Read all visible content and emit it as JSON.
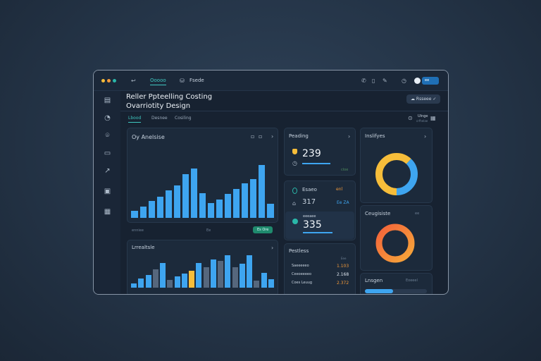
{
  "topbar": {
    "nav_active": "Ooooo",
    "nav_item": "Fsede",
    "badge": "ee"
  },
  "header": {
    "title_line1": "Reller Ppteelling Costing",
    "title_line2": "Ovarriotity Design",
    "action_button": "Rsseee",
    "status_label": "Ulnge",
    "status_sub": "crfhelae"
  },
  "tabs": [
    {
      "label": "Lbood",
      "active": true
    },
    {
      "label": "Desnee"
    },
    {
      "label": "Cosiling"
    }
  ],
  "overview": {
    "title": "Oy Anelsise",
    "footer_button": "Es Ore",
    "footer_labels": [
      "enniee",
      "Ee"
    ],
    "chart_data": {
      "type": "bar",
      "values": [
        30,
        47,
        72,
        88,
        115,
        137,
        184,
        209,
        104,
        63,
        78,
        102,
        122,
        145,
        163,
        223,
        60
      ],
      "color": "#3ea5f0"
    }
  },
  "levels": {
    "title": "Lrrealtsle",
    "chart_data": {
      "type": "bar",
      "values": [
        17,
        38,
        55,
        76,
        105,
        34,
        48,
        60,
        72,
        105,
        87,
        120,
        112,
        137,
        87,
        102,
        137,
        29,
        63,
        37
      ],
      "highlight": [
        "b",
        "b",
        "b",
        "g",
        "b",
        "g",
        "b",
        "b",
        "y",
        "b",
        "g",
        "b",
        "g",
        "b",
        "g",
        "b",
        "b",
        "g",
        "b",
        "b"
      ],
      "colors": {
        "b": "#3ea5f0",
        "g": "#56677d",
        "y": "#f6bd3a"
      }
    }
  },
  "pending": {
    "title": "Peading",
    "value": "239",
    "progress": 0.6,
    "footer": "cloe"
  },
  "stats": [
    {
      "label": "Esaeo",
      "value": "317",
      "tag": "enl",
      "tag2": "Ee ZA"
    },
    {
      "label": "eeeaee",
      "value": "335",
      "progress": 0.6
    }
  ],
  "parties": {
    "title": "Pestless",
    "col": "Eee",
    "rows": [
      {
        "name": "Saeeeeeo",
        "value": "1.103",
        "color": "#f39a3a"
      },
      {
        "name": "Ceeoeeeeo",
        "value": "2.168",
        "color": "#dfe7f0"
      },
      {
        "name": "Coes Leuug",
        "value": "2.372",
        "color": "#f39a3a"
      }
    ]
  },
  "insights": {
    "title": "Inslifyes",
    "chart_data": {
      "type": "pie",
      "values": [
        62,
        38
      ],
      "colors": [
        "#f6bd3a",
        "#3ea5f0"
      ]
    }
  },
  "complete": {
    "title": "Ceugisiste",
    "tag": "ee",
    "chart_data": {
      "type": "pie",
      "values": [
        100
      ],
      "colors": [
        "#f3633a",
        "#f6a73a"
      ]
    }
  },
  "lower": {
    "title": "Lnsgen",
    "tag": "Eoeeel",
    "progress": 0.45
  }
}
